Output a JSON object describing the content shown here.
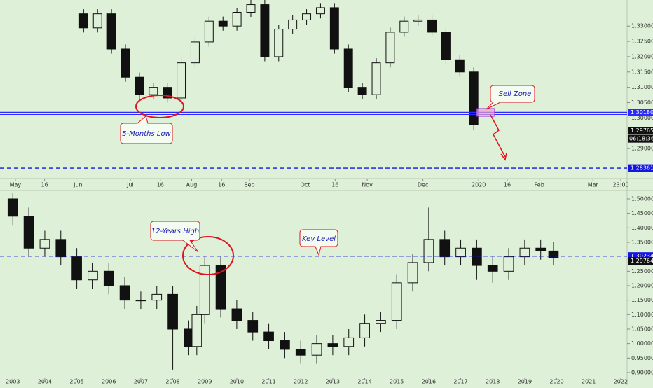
{
  "chart_data": [
    {
      "type": "candlestick",
      "x": [
        12,
        14,
        16,
        18,
        20,
        22,
        24,
        26,
        28,
        30,
        32,
        34,
        36,
        38,
        40,
        42,
        44,
        46,
        48,
        50,
        52,
        54,
        56,
        58,
        60,
        62,
        64,
        66,
        68
      ],
      "open": [
        1.334,
        1.3294,
        1.334,
        1.3225,
        1.3133,
        1.3076,
        1.31,
        1.3065,
        1.318,
        1.3248,
        1.3316,
        1.33,
        1.3345,
        1.337,
        1.32,
        1.329,
        1.332,
        1.334,
        1.336,
        1.3225,
        1.31,
        1.3076,
        1.318,
        1.328,
        1.3316,
        1.332,
        1.328,
        1.319,
        1.315
      ],
      "high": [
        1.3355,
        1.3355,
        1.3355,
        1.324,
        1.3148,
        1.3115,
        1.3115,
        1.3195,
        1.3263,
        1.3331,
        1.3331,
        1.336,
        1.3385,
        1.3385,
        1.3305,
        1.3335,
        1.3355,
        1.3375,
        1.3375,
        1.324,
        1.3115,
        1.3195,
        1.3295,
        1.3331,
        1.3335,
        1.3335,
        1.3295,
        1.3205,
        1.3165
      ],
      "low": [
        1.3279,
        1.3279,
        1.321,
        1.3118,
        1.3061,
        1.3061,
        1.305,
        1.305,
        1.3165,
        1.3233,
        1.3285,
        1.3285,
        1.333,
        1.3185,
        1.3185,
        1.3275,
        1.3305,
        1.3325,
        1.321,
        1.3085,
        1.3061,
        1.3061,
        1.3165,
        1.3265,
        1.3301,
        1.3265,
        1.3175,
        1.3135,
        1.2962
      ],
      "close": [
        1.3294,
        1.334,
        1.3225,
        1.3133,
        1.3076,
        1.31,
        1.3065,
        1.318,
        1.3248,
        1.3316,
        1.33,
        1.3345,
        1.337,
        1.32,
        1.329,
        1.332,
        1.334,
        1.336,
        1.3225,
        1.31,
        1.3076,
        1.318,
        1.328,
        1.3316,
        1.332,
        1.328,
        1.319,
        1.315,
        1.2977
      ],
      "color": "#111111",
      "xlim": [
        0,
        90
      ],
      "ylim": [
        1.2802,
        1.3385
      ],
      "xticks": [
        {
          "value": 2.2,
          "label": "May"
        },
        {
          "value": 6.4,
          "label": "16"
        },
        {
          "value": 11.2,
          "label": "Jun"
        },
        {
          "value": 18.7,
          "label": "Jul"
        },
        {
          "value": 23,
          "label": "16"
        },
        {
          "value": 27.5,
          "label": "Aug"
        },
        {
          "value": 31.8,
          "label": "16"
        },
        {
          "value": 35.8,
          "label": "Sep"
        },
        {
          "value": 43.8,
          "label": "Oct"
        },
        {
          "value": 48.1,
          "label": "16"
        },
        {
          "value": 52.7,
          "label": "Nov"
        },
        {
          "value": 60.7,
          "label": "Dec"
        },
        {
          "value": 68.7,
          "label": "2020"
        },
        {
          "value": 72.8,
          "label": "16"
        },
        {
          "value": 77.4,
          "label": "Feb"
        },
        {
          "value": 85.1,
          "label": "Mar"
        },
        {
          "value": 89.1,
          "label": "23:00"
        }
      ],
      "yticks": [
        {
          "value": 1.29,
          "label": "1.29000"
        },
        {
          "value": 1.3,
          "label": "1.30000"
        },
        {
          "value": 1.305,
          "label": "1.30500"
        },
        {
          "value": 1.31,
          "label": "1.31000"
        },
        {
          "value": 1.315,
          "label": "1.31500"
        },
        {
          "value": 1.32,
          "label": "1.32000"
        },
        {
          "value": 1.325,
          "label": "1.32500"
        },
        {
          "value": 1.33,
          "label": "1.33000"
        }
      ],
      "lines": [
        {
          "value": 1.3018,
          "label": "1.30180",
          "color": "#2b2bff",
          "dashed": false
        },
        {
          "value": 1.28361,
          "label": "1.28361",
          "color": "#1515e0",
          "dashed": true
        }
      ],
      "last_price": {
        "value": 1.29765,
        "label": "1.29765"
      },
      "countdown": "06:18:36",
      "annotations": [
        "5-Months Low",
        "Sell Zone"
      ]
    },
    {
      "type": "candlestick",
      "x": [
        2003,
        2003.5,
        2004,
        2004.5,
        2005,
        2005.5,
        2006,
        2006.5,
        2007,
        2007.5,
        2008,
        2008.5,
        2008.75,
        2009,
        2009.5,
        2010,
        2010.5,
        2011,
        2011.5,
        2012,
        2012.5,
        2013,
        2013.5,
        2014,
        2014.5,
        2015,
        2015.5,
        2016,
        2016.5,
        2017,
        2017.5,
        2018,
        2018.5,
        2019,
        2019.5,
        2019.9
      ],
      "open": [
        1.5,
        1.44,
        1.33,
        1.36,
        1.3,
        1.22,
        1.25,
        1.2,
        1.15,
        1.15,
        1.17,
        1.05,
        0.99,
        1.1,
        1.27,
        1.12,
        1.08,
        1.04,
        1.01,
        0.98,
        0.96,
        1.0,
        0.99,
        1.02,
        1.07,
        1.08,
        1.21,
        1.28,
        1.36,
        1.3,
        1.33,
        1.27,
        1.25,
        1.3,
        1.33,
        1.32
      ],
      "high": [
        1.52,
        1.47,
        1.39,
        1.39,
        1.33,
        1.28,
        1.28,
        1.23,
        1.18,
        1.2,
        1.2,
        1.08,
        1.13,
        1.3,
        1.3,
        1.15,
        1.11,
        1.07,
        1.04,
        1.01,
        1.03,
        1.03,
        1.05,
        1.1,
        1.11,
        1.24,
        1.31,
        1.47,
        1.39,
        1.36,
        1.36,
        1.3,
        1.33,
        1.36,
        1.36,
        1.35
      ],
      "low": [
        1.41,
        1.3,
        1.3,
        1.27,
        1.19,
        1.19,
        1.17,
        1.12,
        1.12,
        1.12,
        0.91,
        0.96,
        0.96,
        1.07,
        1.09,
        1.05,
        1.01,
        0.98,
        0.95,
        0.93,
        0.93,
        0.96,
        0.96,
        0.99,
        1.04,
        1.05,
        1.18,
        1.25,
        1.27,
        1.27,
        1.22,
        1.21,
        1.22,
        1.27,
        1.29,
        1.27
      ],
      "close": [
        1.44,
        1.33,
        1.36,
        1.3,
        1.22,
        1.25,
        1.2,
        1.15,
        1.15,
        1.17,
        1.05,
        0.99,
        1.1,
        1.27,
        1.12,
        1.08,
        1.04,
        1.01,
        0.98,
        0.96,
        1.0,
        0.99,
        1.02,
        1.07,
        1.08,
        1.21,
        1.28,
        1.36,
        1.3,
        1.33,
        1.27,
        1.25,
        1.3,
        1.33,
        1.32,
        1.2976
      ],
      "color": "#111111",
      "xlim": [
        2002.6,
        2022.2
      ],
      "ylim": [
        0.8806,
        1.529
      ],
      "xticks": [
        2003,
        2004,
        2005,
        2006,
        2007,
        2008,
        2009,
        2010,
        2011,
        2012,
        2013,
        2014,
        2015,
        2016,
        2017,
        2018,
        2019,
        2020,
        2021,
        2022
      ],
      "yticks": [
        {
          "value": 0.9,
          "label": "0.90000"
        },
        {
          "value": 0.95,
          "label": "0.95000"
        },
        {
          "value": 1.0,
          "label": "1.00000"
        },
        {
          "value": 1.05,
          "label": "1.05000"
        },
        {
          "value": 1.1,
          "label": "1.10000"
        },
        {
          "value": 1.15,
          "label": "1.15000"
        },
        {
          "value": 1.2,
          "label": "1.20000"
        },
        {
          "value": 1.25,
          "label": "1.25000"
        },
        {
          "value": 1.35,
          "label": "1.35000"
        },
        {
          "value": 1.4,
          "label": "1.40000"
        },
        {
          "value": 1.45,
          "label": "1.45000"
        },
        {
          "value": 1.5,
          "label": "1.50000"
        }
      ],
      "lines": [
        {
          "value": 1.30234,
          "label": "1.30234",
          "color": "#1515e0",
          "dashed": true
        }
      ],
      "last_price": {
        "value": 1.29764,
        "label": "1.29764"
      },
      "annotations": [
        "12-Years High",
        "Key Level"
      ]
    }
  ]
}
